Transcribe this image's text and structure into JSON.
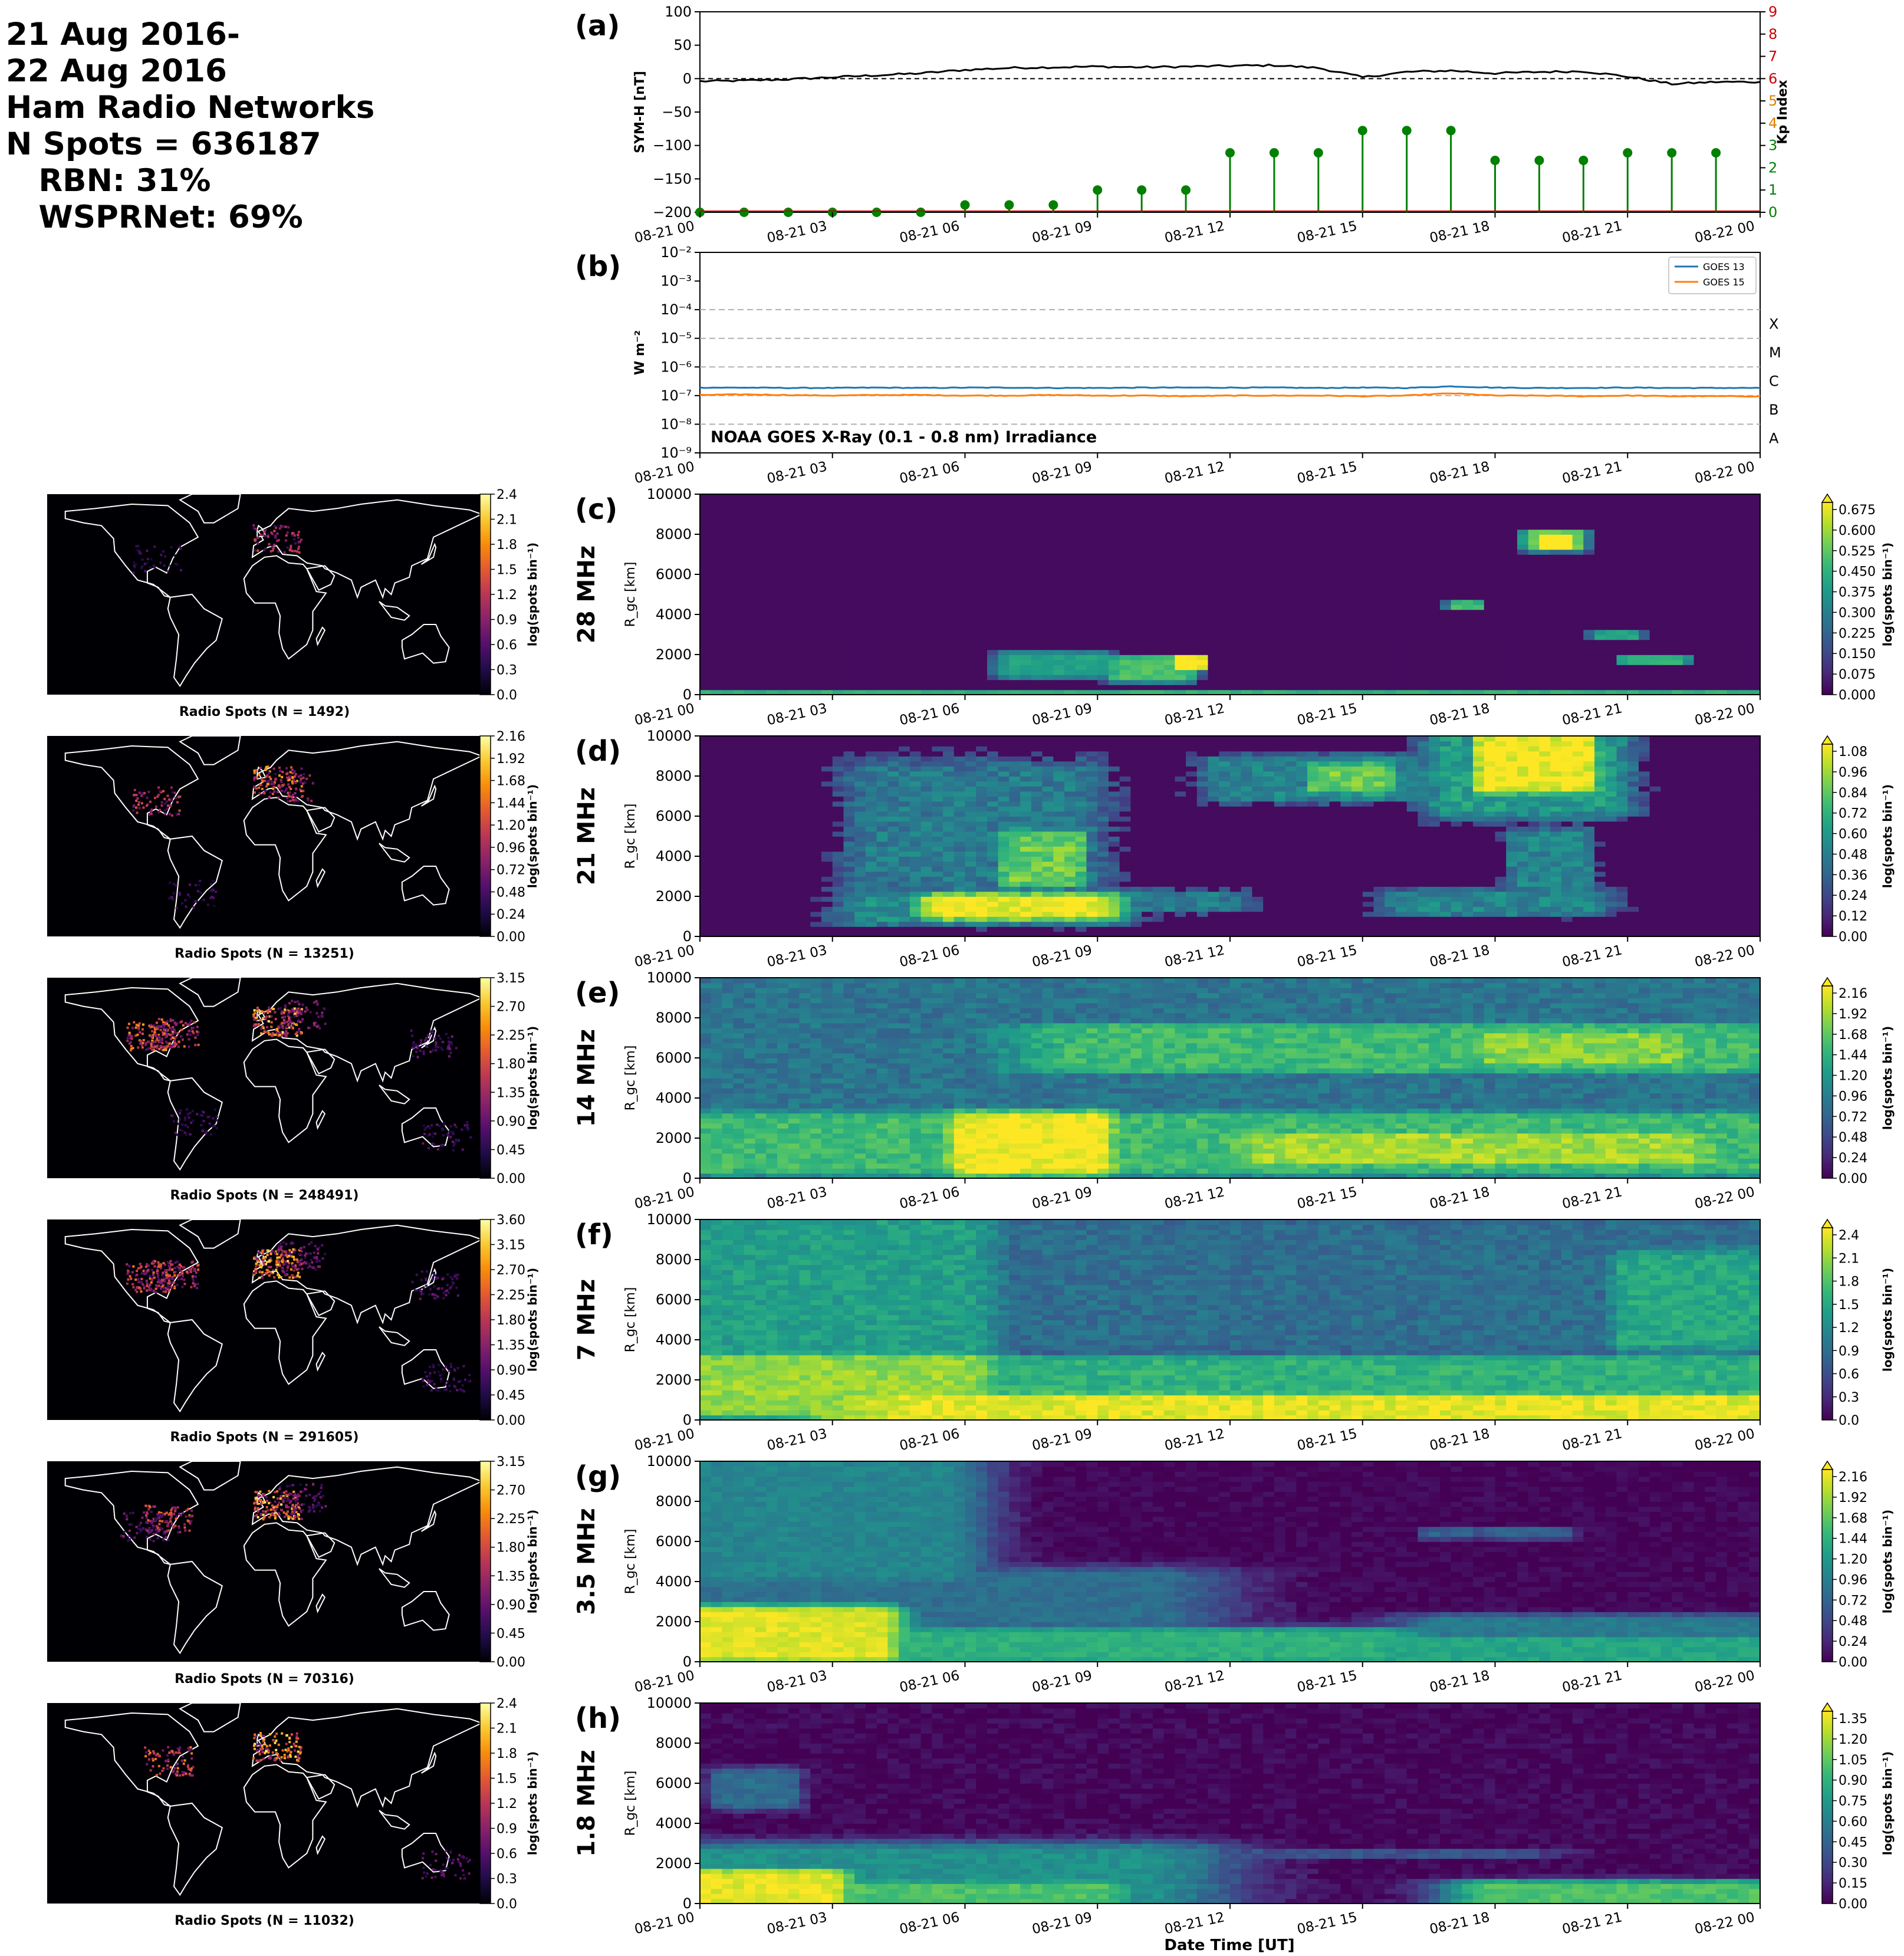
{
  "header": {
    "lines": [
      "21 Aug 2016-",
      "22 Aug 2016",
      "Ham Radio Networks",
      "N Spots = 636187",
      "   RBN: 31%",
      "   WSPRNet: 69%"
    ]
  },
  "colors": {
    "symh_line": "#000000",
    "kp_stem": "#008000",
    "kp_axis": "#d00000",
    "goes13": "#1f77b4",
    "goes15": "#ff7f0e",
    "inferno_low": "#000004",
    "inferno_high": "#fcffa4",
    "viridis_low": "#440154",
    "viridis_high": "#fde725",
    "coastline": "#ffffff"
  },
  "time_ticks": [
    "08-21 00",
    "08-21 03",
    "08-21 06",
    "08-21 09",
    "08-21 12",
    "08-21 15",
    "08-21 18",
    "08-21 21",
    "08-22 00"
  ],
  "chart_data": [
    {
      "id": "a",
      "type": "line",
      "panel_label": "(a)",
      "ylabel": "SYM-H [nT]",
      "y2label": "Kp Index",
      "ylim": [
        -200,
        100
      ],
      "yticks": [
        "100",
        "50",
        "0",
        "−50",
        "−100",
        "−150",
        "−200"
      ],
      "y2lim": [
        0,
        9
      ],
      "y2ticks": [
        "0",
        "1",
        "2",
        "3",
        "4",
        "5",
        "6",
        "7",
        "8",
        "9"
      ],
      "x_hours": [
        0,
        1,
        2,
        3,
        4,
        5,
        6,
        7,
        8,
        9,
        10,
        11,
        12,
        13,
        14,
        15,
        16,
        17,
        18,
        19,
        20,
        21,
        22,
        23,
        24
      ],
      "symh": [
        -4,
        -3,
        -1,
        2,
        5,
        8,
        13,
        16,
        17,
        18,
        17,
        18,
        19,
        20,
        16,
        2,
        10,
        12,
        8,
        10,
        11,
        3,
        -8,
        -5,
        -5
      ],
      "kp_hours": [
        0,
        1,
        2,
        3,
        4,
        5,
        6,
        7,
        8,
        9,
        10,
        11,
        12,
        13,
        14,
        15,
        16,
        17,
        18,
        19,
        20,
        21,
        22,
        23
      ],
      "kp": [
        0,
        0,
        0,
        0,
        0,
        0,
        0.33,
        0.33,
        0.33,
        1,
        1,
        1,
        2.67,
        2.67,
        2.67,
        3.67,
        3.67,
        3.67,
        2.33,
        2.33,
        2.33,
        2.67,
        2.67,
        2.67
      ],
      "kp_threshold": 6
    },
    {
      "id": "b",
      "type": "line",
      "panel_label": "(b)",
      "ylabel": "W m⁻²",
      "yscale": "log",
      "ylim": [
        1e-09,
        0.01
      ],
      "yticks": [
        "10⁻²",
        "10⁻³",
        "10⁻⁴",
        "10⁻⁵",
        "10⁻⁶",
        "10⁻⁷",
        "10⁻⁸",
        "10⁻⁹"
      ],
      "flare_classes": [
        "X",
        "M",
        "C",
        "B",
        "A"
      ],
      "annotation": "NOAA GOES X-Ray (0.1 - 0.8 nm) Irradiance",
      "x_hours": [
        0,
        1,
        2,
        3,
        4,
        5,
        6,
        7,
        8,
        9,
        10,
        11,
        12,
        13,
        14,
        15,
        16,
        17,
        18,
        19,
        20,
        21,
        22,
        23,
        24
      ],
      "series": [
        {
          "name": "GOES 13",
          "values": [
            1.9e-07,
            1.9e-07,
            1.85e-07,
            1.85e-07,
            1.9e-07,
            1.85e-07,
            1.9e-07,
            1.9e-07,
            1.85e-07,
            1.85e-07,
            1.9e-07,
            1.9e-07,
            1.9e-07,
            1.9e-07,
            1.85e-07,
            1.9e-07,
            1.85e-07,
            2.1e-07,
            1.9e-07,
            1.85e-07,
            1.85e-07,
            1.9e-07,
            1.85e-07,
            1.85e-07,
            1.85e-07
          ]
        },
        {
          "name": "GOES 15",
          "values": [
            1.05e-07,
            1.1e-07,
            1.05e-07,
            1e-07,
            1.05e-07,
            1.05e-07,
            1e-07,
            1e-07,
            1.05e-07,
            1e-07,
            1e-07,
            9.5e-08,
            1e-07,
            1e-07,
            1e-07,
            9.5e-08,
            1e-07,
            1.2e-07,
            1e-07,
            1e-07,
            9.5e-08,
            1e-07,
            9.5e-08,
            9.5e-08,
            9.5e-08
          ]
        }
      ]
    },
    {
      "id": "c",
      "type": "heatmap",
      "panel_label": "(c)",
      "band": "28 MHz",
      "ylabel": "R_gc [km]",
      "ylim": [
        0,
        10000
      ],
      "yticks": [
        "10000",
        "8000",
        "6000",
        "4000",
        "2000",
        "0"
      ],
      "cbar_label": "log(spots bin⁻¹)",
      "cbar_ticks": [
        "0.000",
        "0.075",
        "0.150",
        "0.225",
        "0.300",
        "0.375",
        "0.450",
        "0.525",
        "0.600",
        "0.675"
      ],
      "map_title": "Radio Spots (N = 1492)",
      "map_cbar_ticks": [
        "0.0",
        "0.3",
        "0.6",
        "0.9",
        "1.2",
        "1.5",
        "1.8",
        "2.1",
        "2.4"
      ],
      "baseline": 0.02,
      "blobs": [
        {
          "t": [
            7,
            9
          ],
          "r": [
            1000,
            2000
          ],
          "v": 0.4
        },
        {
          "t": [
            9.5,
            11
          ],
          "r": [
            800,
            1800
          ],
          "v": 0.5
        },
        {
          "t": [
            10.8,
            11.3
          ],
          "r": [
            1300,
            1900
          ],
          "v": 0.7
        },
        {
          "t": [
            0,
            24
          ],
          "r": [
            0,
            150
          ],
          "v": 0.45
        },
        {
          "t": [
            17.2,
            17.4
          ],
          "r": [
            4300,
            4600
          ],
          "v": 0.5
        },
        {
          "t": [
            18.8,
            19.9
          ],
          "r": [
            7300,
            8100
          ],
          "v": 0.55
        },
        {
          "t": [
            19.2,
            19.5
          ],
          "r": [
            7400,
            7900
          ],
          "v": 0.8
        },
        {
          "t": [
            20.3,
            21.2
          ],
          "r": [
            2900,
            3100
          ],
          "v": 0.4
        },
        {
          "t": [
            21,
            22.2
          ],
          "r": [
            1600,
            1900
          ],
          "v": 0.45
        }
      ],
      "noise": 0.06,
      "zmax": 0.7
    },
    {
      "id": "d",
      "type": "heatmap",
      "panel_label": "(d)",
      "band": "21 MHz",
      "ylabel": "R_gc [km]",
      "ylim": [
        0,
        10000
      ],
      "yticks": [
        "10000",
        "8000",
        "6000",
        "4000",
        "2000",
        "0"
      ],
      "cbar_label": "log(spots bin⁻¹)",
      "cbar_ticks": [
        "0.00",
        "0.12",
        "0.24",
        "0.36",
        "0.48",
        "0.60",
        "0.72",
        "0.84",
        "0.96",
        "1.08"
      ],
      "map_title": "Radio Spots (N = 13251)",
      "map_cbar_ticks": [
        "0.00",
        "0.24",
        "0.48",
        "0.72",
        "0.96",
        "1.20",
        "1.44",
        "1.68",
        "1.92",
        "2.16"
      ],
      "baseline": 0.03,
      "blobs": [
        {
          "t": [
            4,
            9
          ],
          "r": [
            800,
            2200
          ],
          "v": 0.55
        },
        {
          "t": [
            5.5,
            9
          ],
          "r": [
            1000,
            2000
          ],
          "v": 1.1
        },
        {
          "t": [
            4,
            8.5
          ],
          "r": [
            3000,
            8000
          ],
          "v": 0.45
        },
        {
          "t": [
            7,
            8.5
          ],
          "r": [
            2800,
            5000
          ],
          "v": 0.85
        },
        {
          "t": [
            9,
            12
          ],
          "r": [
            1300,
            2200
          ],
          "v": 0.45
        },
        {
          "t": [
            12,
            16
          ],
          "r": [
            7000,
            8800
          ],
          "v": 0.5
        },
        {
          "t": [
            14,
            15.5
          ],
          "r": [
            7300,
            8500
          ],
          "v": 0.85
        },
        {
          "t": [
            17,
            20.5
          ],
          "r": [
            6500,
            10000
          ],
          "v": 0.6
        },
        {
          "t": [
            17.8,
            20
          ],
          "r": [
            7500,
            9800
          ],
          "v": 1.1
        },
        {
          "t": [
            16,
            20
          ],
          "r": [
            1200,
            2200
          ],
          "v": 0.5
        },
        {
          "t": [
            18.5,
            20
          ],
          "r": [
            2500,
            5000
          ],
          "v": 0.5
        }
      ],
      "noise": 0.22,
      "zmax": 1.1
    },
    {
      "id": "e",
      "type": "heatmap",
      "panel_label": "(e)",
      "band": "14 MHz",
      "ylabel": "R_gc [km]",
      "ylim": [
        0,
        10000
      ],
      "yticks": [
        "10000",
        "8000",
        "6000",
        "4000",
        "2000",
        "0"
      ],
      "cbar_label": "log(spots bin⁻¹)",
      "cbar_ticks": [
        "0.00",
        "0.24",
        "0.48",
        "0.72",
        "0.96",
        "1.20",
        "1.44",
        "1.68",
        "1.92",
        "2.16"
      ],
      "map_title": "Radio Spots (N = 248491)",
      "map_cbar_ticks": [
        "0.00",
        "0.45",
        "0.90",
        "1.35",
        "1.80",
        "2.25",
        "2.70",
        "3.15"
      ],
      "baseline": 0.85,
      "blobs": [
        {
          "t": [
            0,
            24
          ],
          "r": [
            500,
            3000
          ],
          "v": 1.5
        },
        {
          "t": [
            6,
            9
          ],
          "r": [
            500,
            3000
          ],
          "v": 2.2
        },
        {
          "t": [
            13,
            22
          ],
          "r": [
            800,
            2200
          ],
          "v": 1.9
        },
        {
          "t": [
            9,
            24
          ],
          "r": [
            5500,
            7500
          ],
          "v": 1.5
        },
        {
          "t": [
            18,
            22
          ],
          "r": [
            5800,
            7200
          ],
          "v": 1.8
        }
      ],
      "noise": 0.35,
      "zmax": 2.2
    },
    {
      "id": "f",
      "type": "heatmap",
      "panel_label": "(f)",
      "band": "7 MHz",
      "ylabel": "R_gc [km]",
      "ylim": [
        0,
        10000
      ],
      "yticks": [
        "10000",
        "8000",
        "6000",
        "4000",
        "2000",
        "0"
      ],
      "cbar_label": "log(spots bin⁻¹)",
      "cbar_ticks": [
        "0.0",
        "0.3",
        "0.6",
        "0.9",
        "1.2",
        "1.5",
        "1.8",
        "2.1",
        "2.4"
      ],
      "map_title": "Radio Spots (N = 291605)",
      "map_cbar_ticks": [
        "0.00",
        "0.45",
        "0.90",
        "1.35",
        "1.80",
        "2.25",
        "2.70",
        "3.15",
        "3.60"
      ],
      "baseline": 0.5,
      "blobs": [
        {
          "t": [
            0,
            6
          ],
          "r": [
            0,
            10000
          ],
          "v": 1.4
        },
        {
          "t": [
            0,
            6
          ],
          "r": [
            500,
            3000
          ],
          "v": 2.1
        },
        {
          "t": [
            5,
            24
          ],
          "r": [
            0,
            1200
          ],
          "v": 2.4
        },
        {
          "t": [
            6,
            24
          ],
          "r": [
            1200,
            3000
          ],
          "v": 1.6
        },
        {
          "t": [
            8,
            24
          ],
          "r": [
            4000,
            9500
          ],
          "v": 0.9
        },
        {
          "t": [
            21,
            24
          ],
          "r": [
            4000,
            8000
          ],
          "v": 1.5
        }
      ],
      "noise": 0.35,
      "zmax": 2.5
    },
    {
      "id": "g",
      "type": "heatmap",
      "panel_label": "(g)",
      "band": "3.5 MHz",
      "ylabel": "R_gc [km]",
      "ylim": [
        0,
        10000
      ],
      "yticks": [
        "10000",
        "8000",
        "6000",
        "4000",
        "2000",
        "0"
      ],
      "cbar_label": "log(spots bin⁻¹)",
      "cbar_ticks": [
        "0.00",
        "0.24",
        "0.48",
        "0.72",
        "0.96",
        "1.20",
        "1.44",
        "1.68",
        "1.92",
        "2.16"
      ],
      "map_title": "Radio Spots (N = 70316)",
      "map_cbar_ticks": [
        "0.00",
        "0.45",
        "0.90",
        "1.35",
        "1.80",
        "2.25",
        "2.70",
        "3.15"
      ],
      "baseline": 0.02,
      "blobs": [
        {
          "t": [
            0,
            5.5
          ],
          "r": [
            4500,
            10000
          ],
          "v": 1.0
        },
        {
          "t": [
            0,
            10
          ],
          "r": [
            2000,
            4300
          ],
          "v": 0.8
        },
        {
          "t": [
            0,
            4
          ],
          "r": [
            300,
            2500
          ],
          "v": 2.1
        },
        {
          "t": [
            4,
            15
          ],
          "r": [
            200,
            1500
          ],
          "v": 1.4
        },
        {
          "t": [
            15,
            24
          ],
          "r": [
            100,
            1200
          ],
          "v": 1.3
        },
        {
          "t": [
            17,
            24
          ],
          "r": [
            1200,
            2200
          ],
          "v": 0.9
        },
        {
          "t": [
            16.5,
            17.5
          ],
          "r": [
            6200,
            6600
          ],
          "v": 0.7
        },
        {
          "t": [
            18,
            19.5
          ],
          "r": [
            6200,
            6600
          ],
          "v": 0.7
        }
      ],
      "noise": 0.2,
      "zmax": 2.2
    },
    {
      "id": "h",
      "type": "heatmap",
      "panel_label": "(h)",
      "band": "1.8 MHz",
      "ylabel": "R_gc [km]",
      "ylim": [
        0,
        10000
      ],
      "yticks": [
        "10000",
        "8000",
        "6000",
        "4000",
        "2000",
        "0"
      ],
      "xlabel": "Date Time [UT]",
      "cbar_label": "log(spots bin⁻¹)",
      "cbar_ticks": [
        "0.00",
        "0.15",
        "0.30",
        "0.45",
        "0.60",
        "0.75",
        "0.90",
        "1.05",
        "1.20",
        "1.35"
      ],
      "map_title": "Radio Spots (N = 11032)",
      "map_cbar_ticks": [
        "0.0",
        "0.3",
        "0.6",
        "0.9",
        "1.2",
        "1.5",
        "1.8",
        "2.1",
        "2.4"
      ],
      "baseline": 0.02,
      "blobs": [
        {
          "t": [
            0,
            10
          ],
          "r": [
            200,
            2600
          ],
          "v": 0.7
        },
        {
          "t": [
            0,
            3
          ],
          "r": [
            0,
            1500
          ],
          "v": 1.35
        },
        {
          "t": [
            3,
            9
          ],
          "r": [
            0,
            1000
          ],
          "v": 1.0
        },
        {
          "t": [
            0.5,
            2
          ],
          "r": [
            5000,
            6500
          ],
          "v": 0.5
        },
        {
          "t": [
            18,
            24
          ],
          "r": [
            0,
            1000
          ],
          "v": 1.0
        },
        {
          "t": [
            11,
            18
          ],
          "r": [
            2300,
            2700
          ],
          "v": 0.35
        }
      ],
      "noise": 0.15,
      "zmax": 1.4
    }
  ]
}
